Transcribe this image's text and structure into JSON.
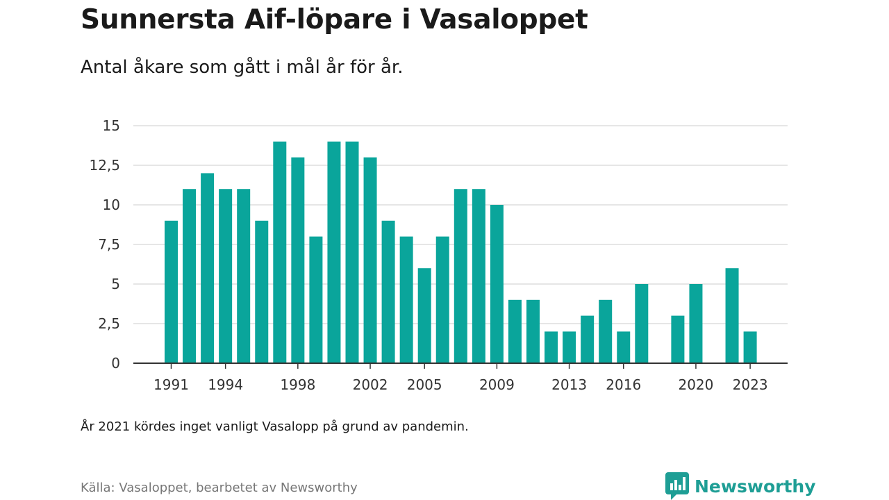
{
  "header": {
    "title": "Sunnersta Aif-löpare i Vasaloppet",
    "subtitle": "Antal åkare som gått i mål år för år."
  },
  "footer": {
    "note": "År 2021 kördes inget vanligt Vasalopp på grund av pandemin.",
    "source": "Källa: Vasaloppet, bearbetet av Newsworthy",
    "brand": "Newsworthy",
    "brand_icon": "newsworthy-logo-icon"
  },
  "colors": {
    "bar": "#0aa59b",
    "grid": "#dddddd",
    "axis": "#333333",
    "brand": "#1e9e95"
  },
  "chart_data": {
    "type": "bar",
    "title": "Sunnersta Aif-löpare i Vasaloppet",
    "subtitle": "Antal åkare som gått i mål år för år.",
    "xlabel": "",
    "ylabel": "",
    "ylim": [
      0,
      15
    ],
    "y_ticks": [
      0,
      2.5,
      5,
      7.5,
      10,
      12.5,
      15
    ],
    "y_tick_labels": [
      "0",
      "2,5",
      "5",
      "7,5",
      "10",
      "12,5",
      "15"
    ],
    "x_tick_labels": [
      "1991",
      "1994",
      "1998",
      "2002",
      "2005",
      "2009",
      "2013",
      "2016",
      "2020",
      "2023"
    ],
    "grid": true,
    "legend": "none",
    "categories": [
      1991,
      1992,
      1993,
      1994,
      1995,
      1996,
      1997,
      1998,
      1999,
      2000,
      2001,
      2002,
      2003,
      2004,
      2005,
      2006,
      2007,
      2008,
      2009,
      2010,
      2011,
      2012,
      2013,
      2014,
      2015,
      2016,
      2017,
      2018,
      2019,
      2020,
      2021,
      2022,
      2023
    ],
    "values": [
      9,
      11,
      12,
      11,
      11,
      9,
      14,
      13,
      8,
      14,
      14,
      13,
      9,
      8,
      6,
      8,
      11,
      11,
      10,
      4,
      4,
      2,
      2,
      3,
      4,
      2,
      5,
      0,
      3,
      5,
      0,
      6,
      2
    ]
  }
}
